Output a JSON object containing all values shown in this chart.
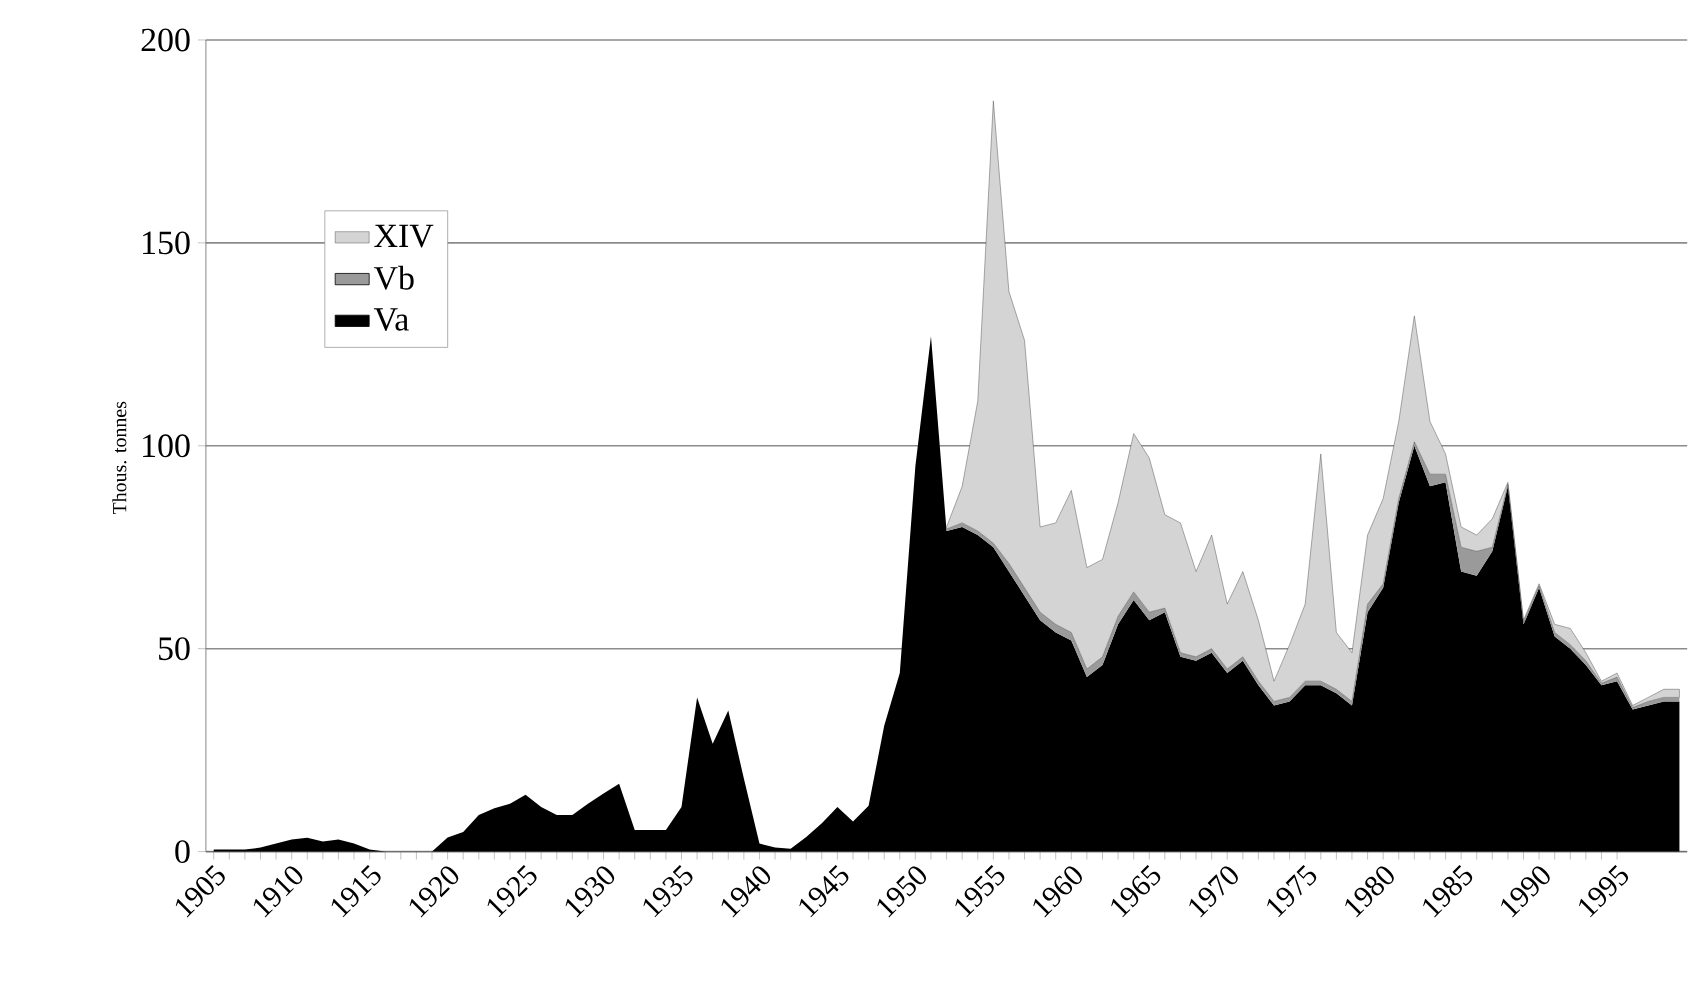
{
  "chart_data": {
    "type": "area",
    "stacked": true,
    "ylabel": "Thous. tonnes",
    "x": [
      1905,
      1906,
      1907,
      1908,
      1909,
      1910,
      1911,
      1912,
      1913,
      1914,
      1915,
      1916,
      1917,
      1918,
      1919,
      1920,
      1921,
      1922,
      1923,
      1924,
      1925,
      1926,
      1927,
      1928,
      1929,
      1930,
      1931,
      1932,
      1933,
      1934,
      1935,
      1936,
      1937,
      1938,
      1939,
      1940,
      1941,
      1942,
      1943,
      1944,
      1945,
      1946,
      1947,
      1948,
      1949,
      1950,
      1951,
      1952,
      1953,
      1954,
      1955,
      1956,
      1957,
      1958,
      1959,
      1960,
      1961,
      1962,
      1963,
      1964,
      1965,
      1966,
      1967,
      1968,
      1969,
      1970,
      1971,
      1972,
      1973,
      1974,
      1975,
      1976,
      1977,
      1978,
      1979,
      1980,
      1981,
      1982,
      1983,
      1984,
      1985,
      1986,
      1987,
      1988,
      1989,
      1990,
      1991,
      1992,
      1993,
      1994,
      1995,
      1996,
      1997,
      1998,
      1999
    ],
    "xlim": [
      1904.5,
      1999.5
    ],
    "xticks": [
      1905,
      1910,
      1915,
      1920,
      1925,
      1930,
      1935,
      1940,
      1945,
      1950,
      1955,
      1960,
      1965,
      1970,
      1975,
      1980,
      1985,
      1990,
      1995
    ],
    "ylim": [
      0,
      200
    ],
    "yticks": [
      0,
      50,
      100,
      150,
      200
    ],
    "grid": "y",
    "legend": "top left",
    "series": [
      {
        "name": "Va",
        "color": "#000000",
        "values": [
          0.5,
          0.5,
          0.5,
          1,
          2,
          3,
          3.4,
          2.5,
          3,
          2,
          0.5,
          0,
          0,
          0,
          0,
          3.5,
          4.8,
          9,
          10.7,
          11.8,
          14,
          11,
          9,
          9,
          11.8,
          14.3,
          16.7,
          5.3,
          5.3,
          5.3,
          11,
          38,
          26.6,
          34.8,
          18,
          2,
          1,
          0.7,
          3.6,
          7,
          11,
          7.4,
          11.3,
          31,
          44,
          95,
          127,
          79,
          80,
          78,
          75,
          69,
          63,
          57,
          54,
          52,
          43,
          46,
          56,
          62,
          57,
          59,
          48,
          47,
          49,
          44,
          47,
          41,
          36,
          37,
          41,
          41,
          39,
          36,
          59,
          65,
          86,
          100,
          90,
          91,
          69,
          68,
          74,
          90,
          56,
          65,
          53,
          50,
          46,
          41,
          42,
          35,
          36,
          37,
          37
        ]
      },
      {
        "name": "Vb",
        "color": "#9a9a9a",
        "values": [
          null,
          null,
          null,
          null,
          null,
          null,
          null,
          null,
          null,
          null,
          null,
          null,
          null,
          null,
          null,
          null,
          null,
          null,
          null,
          null,
          null,
          null,
          null,
          null,
          null,
          null,
          null,
          null,
          null,
          null,
          null,
          null,
          null,
          null,
          null,
          null,
          null,
          null,
          null,
          null,
          null,
          null,
          null,
          null,
          null,
          null,
          null,
          0.5,
          1,
          1,
          1,
          2,
          2,
          2,
          2,
          2,
          2,
          2,
          2,
          2,
          2,
          1,
          1,
          1,
          1,
          1,
          1,
          1,
          1,
          1,
          1,
          1,
          1,
          1,
          2,
          1,
          1,
          1,
          3,
          2,
          6,
          6,
          1,
          0.5,
          0.5,
          0.5,
          1,
          1,
          1,
          0.5,
          1,
          0.5,
          1,
          1,
          1
        ]
      },
      {
        "name": "XIV",
        "color": "#d4d4d4",
        "values": [
          null,
          null,
          null,
          null,
          null,
          null,
          null,
          null,
          null,
          null,
          null,
          null,
          null,
          null,
          null,
          null,
          null,
          null,
          null,
          null,
          null,
          null,
          null,
          null,
          null,
          null,
          null,
          null,
          null,
          null,
          null,
          null,
          null,
          null,
          null,
          null,
          null,
          null,
          null,
          null,
          null,
          null,
          null,
          null,
          null,
          null,
          null,
          0.5,
          9,
          32,
          109,
          67,
          61,
          21,
          25,
          35,
          25,
          24,
          28,
          39,
          38,
          23,
          32,
          21,
          28,
          16,
          21,
          15,
          5,
          13,
          19,
          56,
          14,
          12,
          17,
          21,
          19,
          31,
          13,
          5,
          5,
          4,
          7,
          0.5,
          0.5,
          0.5,
          2,
          4,
          2,
          0.5,
          1,
          0.5,
          1,
          2,
          2
        ]
      }
    ]
  }
}
